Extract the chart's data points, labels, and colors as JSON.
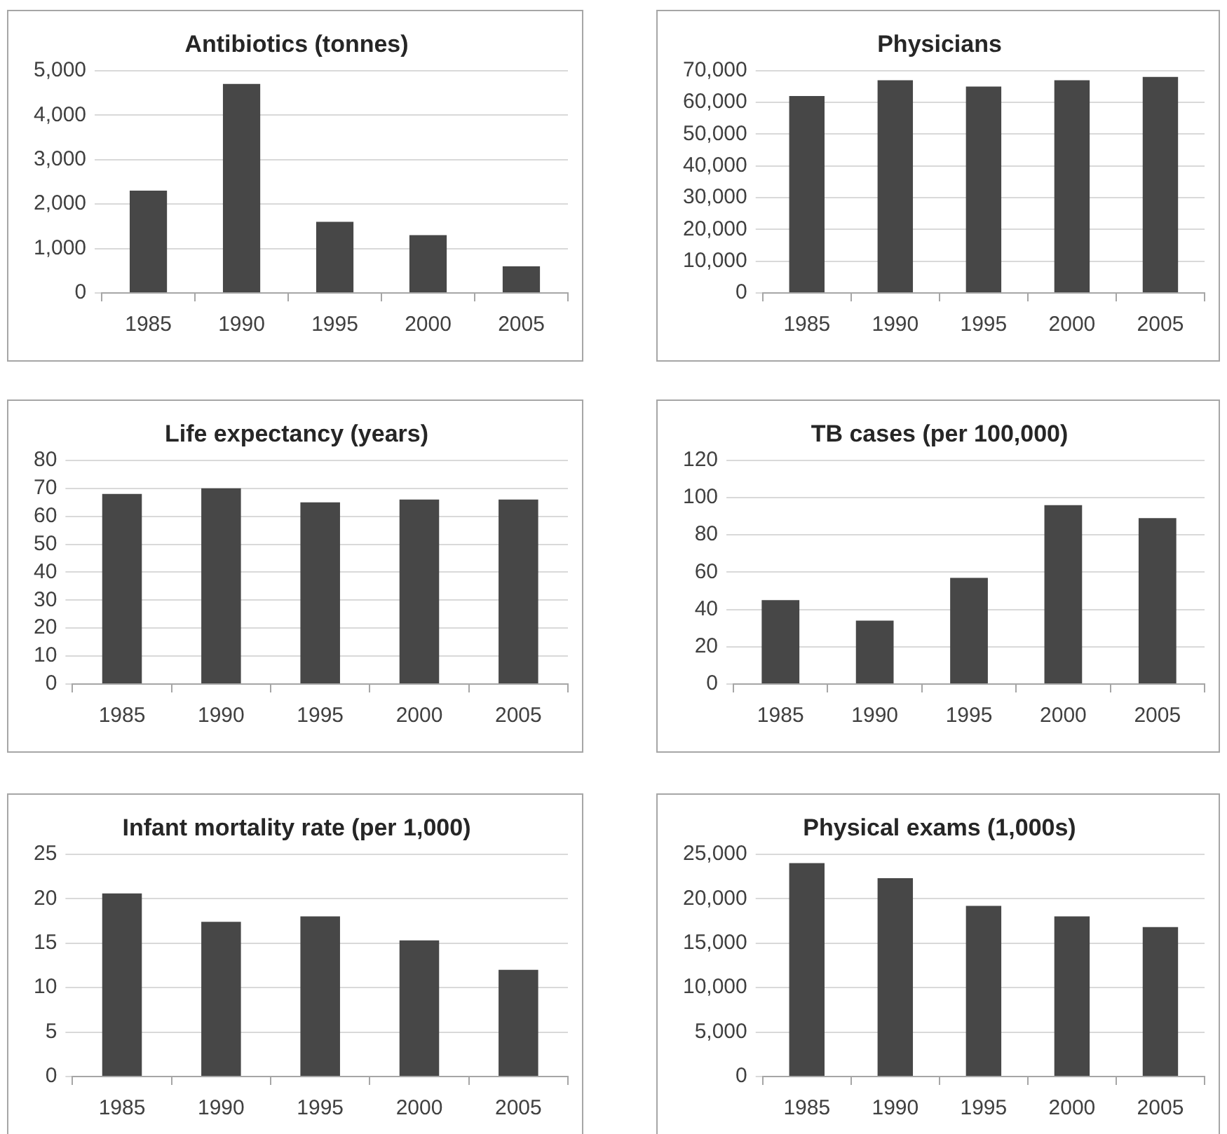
{
  "chart_data": [
    {
      "type": "bar",
      "title": "Antibiotics (tonnes)",
      "categories": [
        "1985",
        "1990",
        "1995",
        "2000",
        "2005"
      ],
      "values": [
        2300,
        4700,
        1600,
        1300,
        600
      ],
      "color": "#474747",
      "ylim": [
        0,
        5000
      ],
      "yticks": [
        0,
        {
          "value": 1000,
          "label": "1,000"
        },
        {
          "value": 2000,
          "label": "2,000"
        },
        {
          "value": 3000,
          "label": "3,000"
        },
        {
          "value": 4000,
          "label": "4,000"
        },
        {
          "value": 5000,
          "label": "5,000"
        }
      ],
      "grid": "y"
    },
    {
      "type": "bar",
      "title": "Physicians",
      "categories": [
        "1985",
        "1990",
        "1995",
        "2000",
        "2005"
      ],
      "values": [
        62000,
        67000,
        65000,
        67000,
        68000
      ],
      "color": "#474747",
      "ylim": [
        0,
        70000
      ],
      "yticks": [
        0,
        {
          "value": 10000,
          "label": "10,000"
        },
        {
          "value": 20000,
          "label": "20,000"
        },
        {
          "value": 30000,
          "label": "30,000"
        },
        {
          "value": 40000,
          "label": "40,000"
        },
        {
          "value": 50000,
          "label": "50,000"
        },
        {
          "value": 60000,
          "label": "60,000"
        },
        {
          "value": 70000,
          "label": "70,000"
        }
      ],
      "grid": "y"
    },
    {
      "type": "bar",
      "title": "Life expectancy (years)",
      "categories": [
        "1985",
        "1990",
        "1995",
        "2000",
        "2005"
      ],
      "values": [
        68,
        70,
        65,
        66,
        66
      ],
      "color": "#474747",
      "ylim": [
        0,
        80
      ],
      "yticks": [
        0,
        10,
        20,
        30,
        40,
        50,
        60,
        70,
        80
      ],
      "grid": "y"
    },
    {
      "type": "bar",
      "title": "TB cases (per 100,000)",
      "categories": [
        "1985",
        "1990",
        "1995",
        "2000",
        "2005"
      ],
      "values": [
        45,
        34,
        57,
        96,
        89
      ],
      "color": "#474747",
      "ylim": [
        0,
        120
      ],
      "yticks": [
        0,
        20,
        40,
        60,
        80,
        100,
        120
      ],
      "grid": "y"
    },
    {
      "type": "bar",
      "title": "Infant mortality rate (per 1,000)",
      "categories": [
        "1985",
        "1990",
        "1995",
        "2000",
        "2005"
      ],
      "values": [
        20.6,
        17.4,
        18.0,
        15.3,
        12.0
      ],
      "color": "#474747",
      "ylim": [
        0,
        25
      ],
      "yticks": [
        0,
        5,
        10,
        15,
        20,
        25
      ],
      "grid": "y"
    },
    {
      "type": "bar",
      "title": "Physical exams (1,000s)",
      "categories": [
        "1985",
        "1990",
        "1995",
        "2000",
        "2005"
      ],
      "values": [
        24000,
        22300,
        19200,
        18000,
        16800
      ],
      "color": "#474747",
      "ylim": [
        0,
        25000
      ],
      "yticks": [
        0,
        {
          "value": 5000,
          "label": "5,000"
        },
        {
          "value": 10000,
          "label": "10,000"
        },
        {
          "value": 15000,
          "label": "15,000"
        },
        {
          "value": 20000,
          "label": "20,000"
        },
        {
          "value": 25000,
          "label": "25,000"
        }
      ],
      "grid": "y"
    }
  ]
}
